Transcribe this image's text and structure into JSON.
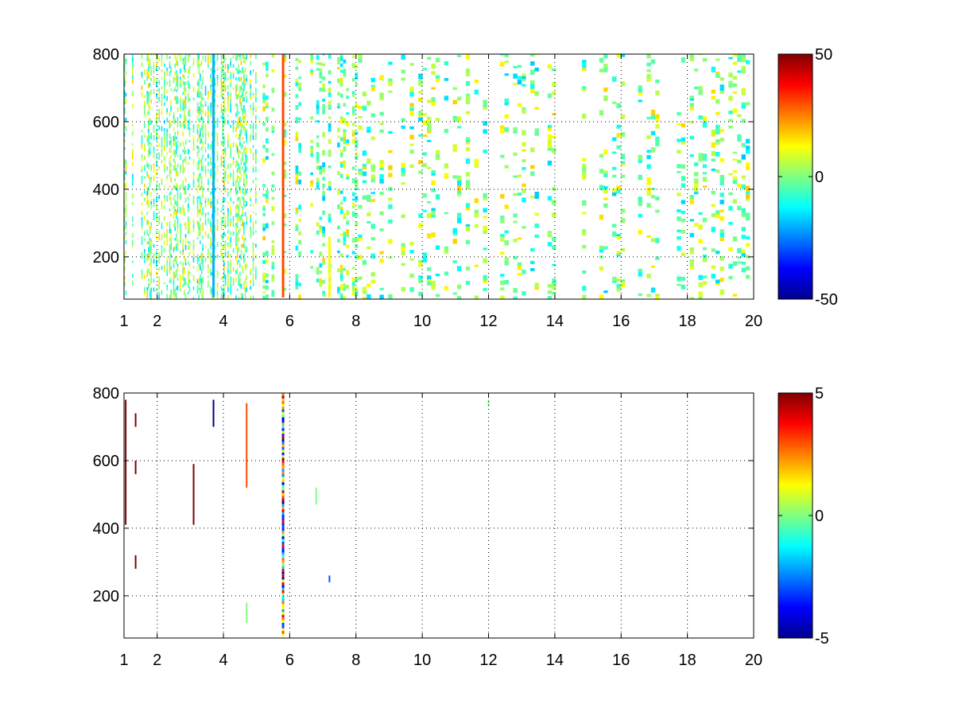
{
  "chart_data": [
    {
      "type": "heatmap",
      "title": "",
      "xlabel": "",
      "ylabel": "",
      "xlim": [
        1,
        20
      ],
      "ylim": [
        75,
        800
      ],
      "grid": true,
      "grid_style": "dotted",
      "colormap": "jet",
      "x_ticks": [
        1,
        2,
        4,
        6,
        8,
        10,
        12,
        14,
        16,
        18,
        20
      ],
      "y_ticks": [
        200,
        400,
        600,
        800
      ],
      "colorbar": {
        "ticks": [
          50,
          0,
          -50
        ],
        "clim": [
          -50,
          50
        ]
      },
      "description_of_content": "sparse speckle map; densest between x=1 and x=5, strong continuous vertical streak near x=5.8",
      "notable_features": [
        {
          "x": 5.8,
          "y_from": 80,
          "y_to": 800,
          "value": 30
        },
        {
          "x": 7.2,
          "y_from": 80,
          "y_to": 260,
          "value": 12
        },
        {
          "x": 3.7,
          "y_from": 80,
          "y_to": 800,
          "value": -20
        }
      ],
      "sparsity": 0.42,
      "value_scale": 12
    },
    {
      "type": "heatmap",
      "title": "",
      "xlabel": "",
      "ylabel": "",
      "xlim": [
        1,
        20
      ],
      "ylim": [
        75,
        800
      ],
      "grid": true,
      "grid_style": "dotted",
      "colormap": "jet",
      "x_ticks": [
        1,
        2,
        4,
        6,
        8,
        10,
        12,
        14,
        16,
        18,
        20
      ],
      "y_ticks": [
        200,
        400,
        600,
        800
      ],
      "colorbar": {
        "ticks": [
          5,
          0,
          -5
        ],
        "clim": [
          -5,
          5
        ]
      },
      "notable_features": [
        {
          "x": 5.8,
          "y_from": 80,
          "y_to": 800,
          "value": "mixed"
        },
        {
          "x": 1.05,
          "y_from": 410,
          "y_to": 780,
          "value": 5
        },
        {
          "x": 1.35,
          "y_from": 700,
          "y_to": 740,
          "value": 5
        },
        {
          "x": 1.35,
          "y_from": 560,
          "y_to": 600,
          "value": 5
        },
        {
          "x": 1.35,
          "y_from": 280,
          "y_to": 320,
          "value": 5
        },
        {
          "x": 3.1,
          "y_from": 410,
          "y_to": 590,
          "value": 5
        },
        {
          "x": 3.7,
          "y_from": 700,
          "y_to": 780,
          "value": -5
        },
        {
          "x": 4.7,
          "y_from": 520,
          "y_to": 770,
          "value": 3
        },
        {
          "x": 4.7,
          "y_from": 120,
          "y_to": 180,
          "value": 0
        },
        {
          "x": 6.8,
          "y_from": 470,
          "y_to": 520,
          "value": 0
        },
        {
          "x": 7.2,
          "y_from": 240,
          "y_to": 260,
          "value": -3
        },
        {
          "x": 12.0,
          "y_from": 760,
          "y_to": 780,
          "value": 0
        }
      ]
    }
  ]
}
